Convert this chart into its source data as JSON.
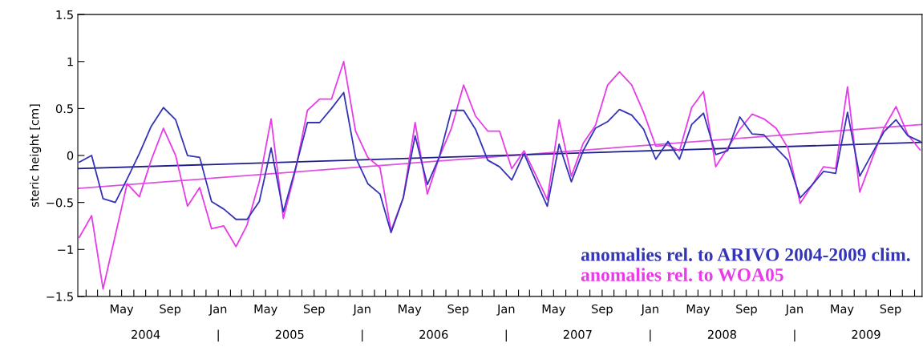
{
  "chart_data": {
    "type": "line",
    "ylabel": "steric height [cm]",
    "x": [
      "2004-01-15",
      "2004-02-15",
      "2004-03-15",
      "2004-04-15",
      "2004-05-15",
      "2004-06-15",
      "2004-07-15",
      "2004-08-15",
      "2004-09-15",
      "2004-10-15",
      "2004-11-15",
      "2004-12-15",
      "2005-01-15",
      "2005-02-15",
      "2005-03-15",
      "2005-04-15",
      "2005-05-15",
      "2005-06-15",
      "2005-07-15",
      "2005-08-15",
      "2005-09-15",
      "2005-10-15",
      "2005-11-15",
      "2005-12-15",
      "2006-01-15",
      "2006-02-15",
      "2006-03-15",
      "2006-04-15",
      "2006-05-15",
      "2006-06-15",
      "2006-07-15",
      "2006-08-15",
      "2006-09-15",
      "2006-10-15",
      "2006-11-15",
      "2006-12-15",
      "2007-01-15",
      "2007-02-15",
      "2007-03-15",
      "2007-04-15",
      "2007-05-15",
      "2007-06-15",
      "2007-07-15",
      "2007-08-15",
      "2007-09-15",
      "2007-10-15",
      "2007-11-15",
      "2007-12-15",
      "2008-01-15",
      "2008-02-15",
      "2008-03-15",
      "2008-04-15",
      "2008-05-15",
      "2008-06-15",
      "2008-07-15",
      "2008-08-15",
      "2008-09-15",
      "2008-10-15",
      "2008-11-15",
      "2008-12-15",
      "2009-01-15",
      "2009-02-15",
      "2009-03-15",
      "2009-04-15",
      "2009-05-15",
      "2009-06-15",
      "2009-07-15",
      "2009-08-15",
      "2009-09-15",
      "2009-10-15",
      "2009-11-15"
    ],
    "series": [
      {
        "name": "anomalies rel. to ARIVO 2004-2009 clim.",
        "color": "#3434b8",
        "values": [
          -0.07,
          0.0,
          -0.46,
          -0.5,
          -0.25,
          0.02,
          0.31,
          0.51,
          0.38,
          0.0,
          -0.02,
          -0.49,
          -0.57,
          -0.68,
          -0.68,
          -0.49,
          0.08,
          -0.6,
          -0.15,
          0.35,
          0.35,
          0.5,
          0.67,
          -0.02,
          -0.3,
          -0.41,
          -0.82,
          -0.45,
          0.21,
          -0.31,
          -0.02,
          0.48,
          0.48,
          0.28,
          -0.05,
          -0.12,
          -0.26,
          0.02,
          -0.25,
          -0.54,
          0.12,
          -0.28,
          0.05,
          0.29,
          0.36,
          0.49,
          0.43,
          0.28,
          -0.04,
          0.15,
          -0.04,
          0.33,
          0.45,
          0.01,
          0.05,
          0.41,
          0.23,
          0.22,
          0.08,
          -0.05,
          -0.45,
          -0.31,
          -0.17,
          -0.19,
          0.46,
          -0.22,
          0.01,
          0.25,
          0.38,
          0.21,
          0.15
        ]
      },
      {
        "name": "anomalies rel. to WOA05",
        "color": "#e83ce8",
        "values": [
          -0.87,
          -0.64,
          -1.42,
          -0.85,
          -0.3,
          -0.44,
          -0.05,
          0.29,
          0.0,
          -0.54,
          -0.34,
          -0.78,
          -0.75,
          -0.97,
          -0.74,
          -0.28,
          0.39,
          -0.67,
          -0.17,
          0.48,
          0.6,
          0.6,
          1.0,
          0.26,
          -0.02,
          -0.13,
          -0.8,
          -0.45,
          0.35,
          -0.41,
          -0.02,
          0.29,
          0.75,
          0.42,
          0.26,
          0.26,
          -0.14,
          0.05,
          -0.19,
          -0.47,
          0.38,
          -0.22,
          0.13,
          0.32,
          0.75,
          0.89,
          0.75,
          0.46,
          0.1,
          0.11,
          0.05,
          0.51,
          0.68,
          -0.12,
          0.08,
          0.28,
          0.44,
          0.39,
          0.29,
          0.08,
          -0.51,
          -0.31,
          -0.12,
          -0.14,
          0.73,
          -0.39,
          -0.05,
          0.29,
          0.52,
          0.22,
          0.06
        ]
      },
      {
        "color": "#1e1e88",
        "x": [
          "2004-01-11",
          "2009-11-20"
        ],
        "values": [
          -0.14,
          0.14
        ]
      },
      {
        "color": "#e050e0",
        "x": [
          "2004-01-11",
          "2009-11-20"
        ],
        "values": [
          -0.35,
          0.33
        ]
      }
    ],
    "xlim": [
      "2004-01-11",
      "2009-11-20"
    ],
    "ylim": [
      -1.5,
      1.5
    ],
    "yticks": [
      1.5,
      1,
      0.5,
      0,
      {
        "value": -0.5,
        "label": "−0.5"
      },
      {
        "value": -1,
        "label": "−1"
      },
      {
        "value": -1.5,
        "label": "−1.5"
      }
    ],
    "xticks": [
      {
        "value": "2004-02",
        "label": null
      },
      {
        "value": "2004-03",
        "label": null
      },
      {
        "value": "2004-04",
        "label": null
      },
      {
        "value": "2004-05",
        "label": "May"
      },
      {
        "value": "2004-06",
        "label": null
      },
      {
        "value": "2004-07",
        "label": null
      },
      {
        "value": "2004-08",
        "label": null
      },
      {
        "value": "2004-09",
        "label": "Sep"
      },
      {
        "value": "2004-10",
        "label": null
      },
      {
        "value": "2004-11",
        "label": null
      },
      {
        "value": "2004-12",
        "label": null
      },
      {
        "value": "2005-01",
        "label": "Jan"
      },
      {
        "value": "2005-02",
        "label": null
      },
      {
        "value": "2005-03",
        "label": null
      },
      {
        "value": "2005-04",
        "label": null
      },
      {
        "value": "2005-05",
        "label": "May"
      },
      {
        "value": "2005-06",
        "label": null
      },
      {
        "value": "2005-07",
        "label": null
      },
      {
        "value": "2005-08",
        "label": null
      },
      {
        "value": "2005-09",
        "label": "Sep"
      },
      {
        "value": "2005-10",
        "label": null
      },
      {
        "value": "2005-11",
        "label": null
      },
      {
        "value": "2005-12",
        "label": null
      },
      {
        "value": "2006-01",
        "label": "Jan"
      },
      {
        "value": "2006-02",
        "label": null
      },
      {
        "value": "2006-03",
        "label": null
      },
      {
        "value": "2006-04",
        "label": null
      },
      {
        "value": "2006-05",
        "label": "May"
      },
      {
        "value": "2006-06",
        "label": null
      },
      {
        "value": "2006-07",
        "label": null
      },
      {
        "value": "2006-08",
        "label": null
      },
      {
        "value": "2006-09",
        "label": "Sep"
      },
      {
        "value": "2006-10",
        "label": null
      },
      {
        "value": "2006-11",
        "label": null
      },
      {
        "value": "2006-12",
        "label": null
      },
      {
        "value": "2007-01",
        "label": "Jan"
      },
      {
        "value": "2007-02",
        "label": null
      },
      {
        "value": "2007-03",
        "label": null
      },
      {
        "value": "2007-04",
        "label": null
      },
      {
        "value": "2007-05",
        "label": "May"
      },
      {
        "value": "2007-06",
        "label": null
      },
      {
        "value": "2007-07",
        "label": null
      },
      {
        "value": "2007-08",
        "label": null
      },
      {
        "value": "2007-09",
        "label": "Sep"
      },
      {
        "value": "2007-10",
        "label": null
      },
      {
        "value": "2007-11",
        "label": null
      },
      {
        "value": "2007-12",
        "label": null
      },
      {
        "value": "2008-01",
        "label": "Jan"
      },
      {
        "value": "2008-02",
        "label": null
      },
      {
        "value": "2008-03",
        "label": null
      },
      {
        "value": "2008-04",
        "label": null
      },
      {
        "value": "2008-05",
        "label": "May"
      },
      {
        "value": "2008-06",
        "label": null
      },
      {
        "value": "2008-07",
        "label": null
      },
      {
        "value": "2008-08",
        "label": null
      },
      {
        "value": "2008-09",
        "label": "Sep"
      },
      {
        "value": "2008-10",
        "label": null
      },
      {
        "value": "2008-11",
        "label": null
      },
      {
        "value": "2008-12",
        "label": null
      },
      {
        "value": "2009-01",
        "label": "Jan"
      },
      {
        "value": "2009-02",
        "label": null
      },
      {
        "value": "2009-03",
        "label": null
      },
      {
        "value": "2009-04",
        "label": null
      },
      {
        "value": "2009-05",
        "label": "May"
      },
      {
        "value": "2009-06",
        "label": null
      },
      {
        "value": "2009-07",
        "label": null
      },
      {
        "value": "2009-08",
        "label": null
      },
      {
        "value": "2009-09",
        "label": "Sep"
      },
      {
        "value": "2009-10",
        "label": null
      },
      {
        "value": "2009-11",
        "label": null
      }
    ],
    "x2lim": [
      "2004-01-11",
      "2009-11-20"
    ],
    "x2ticks": [
      {
        "value": "2004-07",
        "label": "2004"
      },
      {
        "value": "2005-01",
        "label": "|"
      },
      {
        "value": "2005-07",
        "label": "2005"
      },
      {
        "value": "2006-01",
        "label": "|"
      },
      {
        "value": "2006-07",
        "label": "2006"
      },
      {
        "value": "2007-01",
        "label": "|"
      },
      {
        "value": "2007-07",
        "label": "2007"
      },
      {
        "value": "2008-01",
        "label": "|"
      },
      {
        "value": "2008-07",
        "label": "2008"
      },
      {
        "value": "2009-01",
        "label": "|"
      },
      {
        "value": "2009-07",
        "label": "2009"
      }
    ],
    "legend": "bottom right",
    "grid": false,
    "marker": "none",
    "line_style": "solid"
  }
}
